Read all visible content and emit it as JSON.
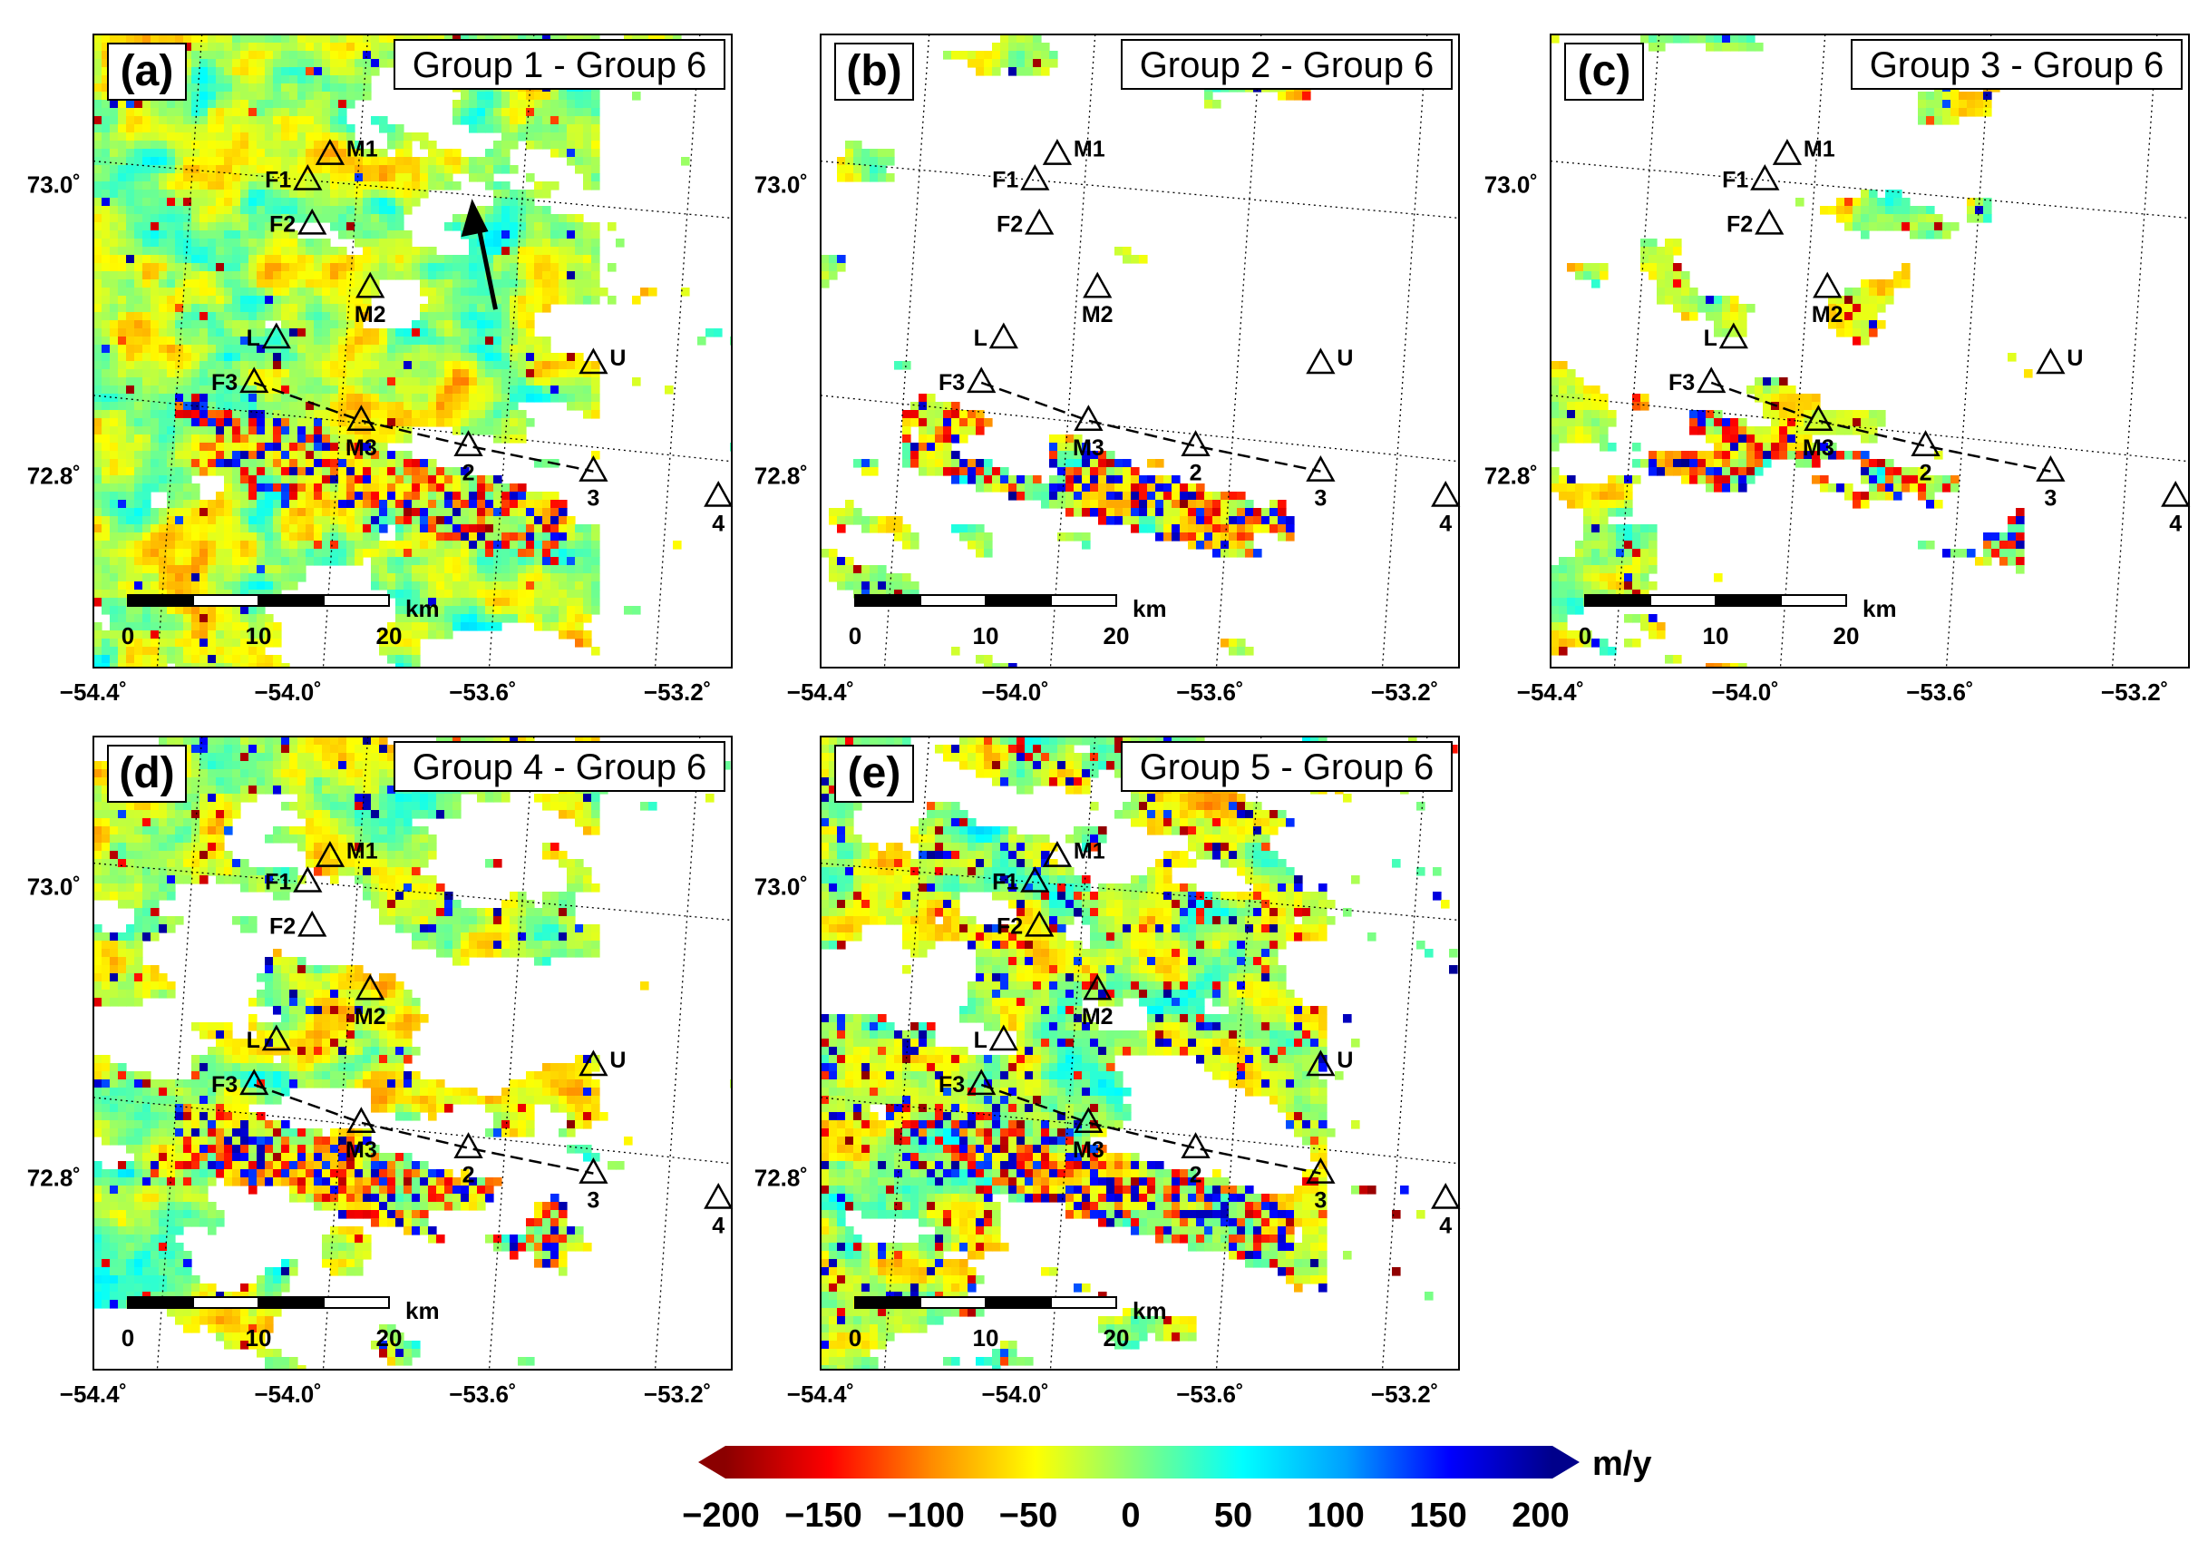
{
  "panels": [
    {
      "tag": "(a)",
      "title": "Group 1 - Group 6",
      "density": 0.92,
      "speckle": 0.1,
      "show_arrow": true
    },
    {
      "tag": "(b)",
      "title": "Group 2 - Group 6",
      "density": 0.28,
      "speckle": 0.22,
      "show_arrow": false
    },
    {
      "tag": "(c)",
      "title": "Group 3 - Group 6",
      "density": 0.42,
      "speckle": 0.3,
      "show_arrow": false
    },
    {
      "tag": "(d)",
      "title": "Group 4 - Group 6",
      "density": 0.62,
      "speckle": 0.28,
      "show_arrow": false
    },
    {
      "tag": "(e)",
      "title": "Group 5 - Group 6",
      "density": 0.74,
      "speckle": 0.55,
      "show_arrow": false
    }
  ],
  "lon_ticks": [
    "−54.4˚",
    "−54.0˚",
    "−53.6˚",
    "−53.2˚"
  ],
  "lat_ticks": [
    "73.0˚",
    "72.8˚"
  ],
  "sites": [
    {
      "name": "F1",
      "lon": -54.12,
      "lat": 73.005,
      "label_side": "left"
    },
    {
      "name": "M1",
      "lon": -54.07,
      "lat": 73.025,
      "label_side": "right"
    },
    {
      "name": "F2",
      "lon": -54.11,
      "lat": 72.97,
      "label_side": "left"
    },
    {
      "name": "M2",
      "lon": -53.98,
      "lat": 72.92,
      "label_side": "below"
    },
    {
      "name": "L",
      "lon": -54.19,
      "lat": 72.88,
      "label_side": "left"
    },
    {
      "name": "F3",
      "lon": -54.24,
      "lat": 72.845,
      "label_side": "left"
    },
    {
      "name": "U",
      "lon": -53.48,
      "lat": 72.86,
      "label_side": "right"
    },
    {
      "name": "M3",
      "lon": -54.0,
      "lat": 72.815,
      "label_side": "below"
    },
    {
      "name": "2",
      "lon": -53.76,
      "lat": 72.795,
      "label_side": "below"
    },
    {
      "name": "3",
      "lon": -53.48,
      "lat": 72.775,
      "label_side": "below"
    },
    {
      "name": "4",
      "lon": -53.2,
      "lat": 72.755,
      "label_side": "below"
    }
  ],
  "scalebar": {
    "labels": [
      "0",
      "10",
      "20"
    ],
    "unit": "km"
  },
  "colorbar": {
    "unit": "m/y",
    "min": -200,
    "max": 200,
    "ticks": [
      "−200",
      "−150",
      "−100",
      "−50",
      "0",
      "50",
      "100",
      "150",
      "200"
    ],
    "colors": [
      "#8b0000",
      "#ff0000",
      "#ff8c00",
      "#ffff00",
      "#7fff7f",
      "#00ffff",
      "#00a0ff",
      "#0000ff",
      "#00008b"
    ]
  },
  "colors": {
    "ice": "#ffffff",
    "frame": "#000000",
    "arrow": "#000000"
  }
}
